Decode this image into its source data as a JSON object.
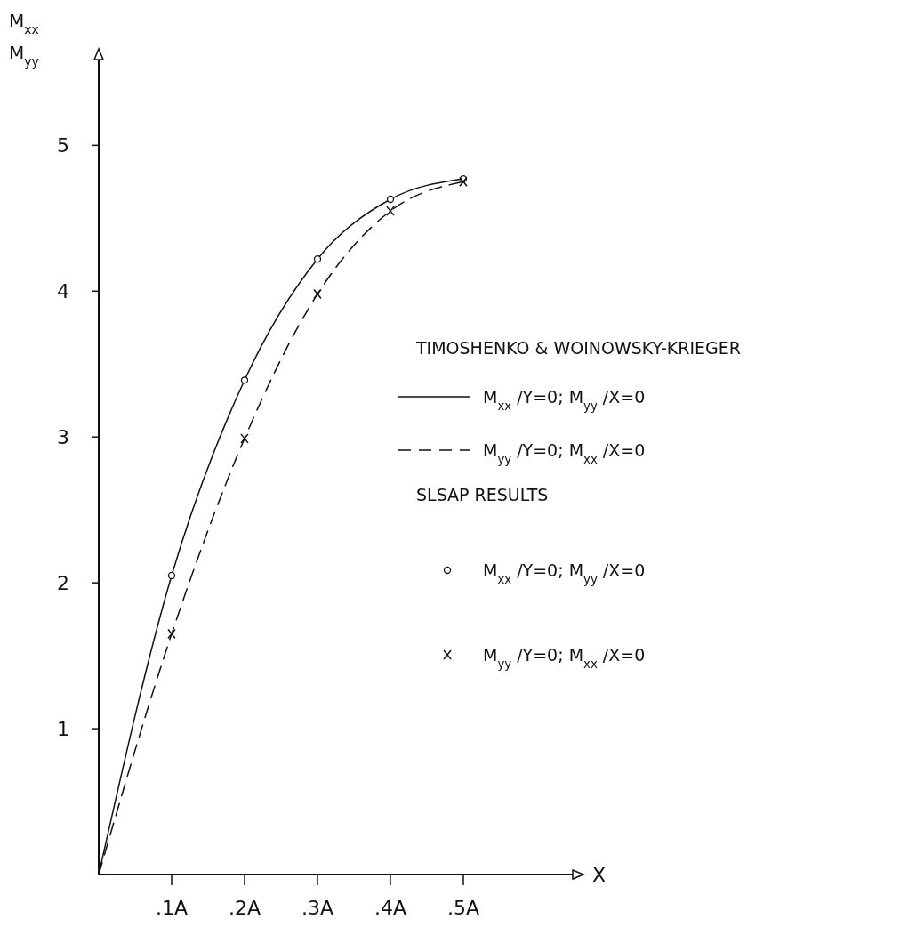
{
  "chart_data": {
    "type": "line",
    "xlabel": "X",
    "ylabel": "M$_{xx}$\nM$_{yy}$",
    "legend_title": "TIMOSHENKO & WOINOWSKY-KRIEGER",
    "annotations": [
      "SLSAP RESULTS"
    ],
    "xlim": [
      0,
      0.65
    ],
    "ylim": [
      0,
      5.6
    ],
    "xticks": [
      {
        "value": 0.1,
        "label": ".1A"
      },
      {
        "value": 0.2,
        "label": ".2A"
      },
      {
        "value": 0.3,
        "label": ".3A"
      },
      {
        "value": 0.4,
        "label": ".4A"
      },
      {
        "value": 0.5,
        "label": ".5A"
      }
    ],
    "yticks": [
      1,
      2,
      3,
      4,
      5
    ],
    "grid": false,
    "legend": "right",
    "series": [
      {
        "name": "M$_{xx}$ /Y=0; M$_{yy}$ /X=0",
        "color": "#111111",
        "line_style": "solid",
        "marker": "none",
        "x": [
          0,
          0.1,
          0.2,
          0.3,
          0.4,
          0.5
        ],
        "values": [
          0,
          2.05,
          3.39,
          4.22,
          4.63,
          4.77
        ]
      },
      {
        "name": "M$_{yy}$ /Y=0; M$_{xx}$ /X=0",
        "color": "#111111",
        "line_style": "dashed",
        "marker": "none",
        "x": [
          0,
          0.1,
          0.2,
          0.3,
          0.4,
          0.5
        ],
        "values": [
          0,
          1.65,
          2.99,
          3.98,
          4.55,
          4.75
        ]
      },
      {
        "name": "M$_{xx}$ /Y=0; M$_{yy}$ /X=0",
        "type": "scatter",
        "color": "#111111",
        "marker": "circle",
        "x": [
          0.1,
          0.2,
          0.3,
          0.4,
          0.5
        ],
        "values": [
          2.05,
          3.39,
          4.22,
          4.63,
          4.77
        ]
      },
      {
        "name": "M$_{yy}$ /Y=0; M$_{xx}$ /X=0",
        "type": "scatter",
        "color": "#111111",
        "marker": "cross",
        "x": [
          0.1,
          0.2,
          0.3,
          0.4,
          0.5
        ],
        "values": [
          1.65,
          2.99,
          3.98,
          4.55,
          4.75
        ]
      }
    ]
  }
}
